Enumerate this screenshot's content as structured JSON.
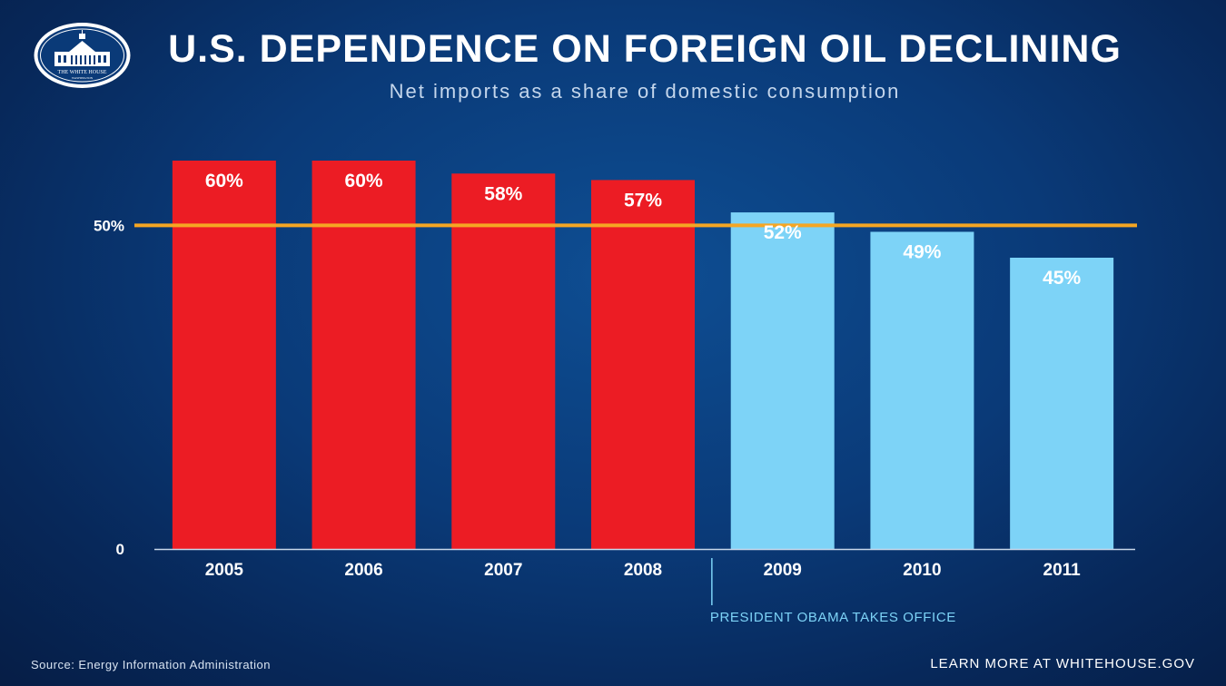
{
  "header": {
    "title": "U.S. DEPENDENCE ON FOREIGN OIL DECLINING",
    "subtitle": "Net imports as a share of domestic consumption"
  },
  "logo": {
    "line1": "THE WHITE HOUSE",
    "line2": "WASHINGTON"
  },
  "chart_data": {
    "type": "bar",
    "title": "U.S. DEPENDENCE ON FOREIGN OIL DECLINING",
    "subtitle": "Net imports as a share of domestic consumption",
    "categories": [
      "2005",
      "2006",
      "2007",
      "2008",
      "2009",
      "2010",
      "2011"
    ],
    "values": [
      60,
      60,
      58,
      57,
      52,
      49,
      45
    ],
    "value_labels": [
      "60%",
      "60%",
      "58%",
      "57%",
      "52%",
      "49%",
      "45%"
    ],
    "bar_colors": [
      "#ec1c24",
      "#ec1c24",
      "#ec1c24",
      "#ec1c24",
      "#7dd3f7",
      "#7dd3f7",
      "#7dd3f7"
    ],
    "ylim": [
      0,
      60
    ],
    "y_ticks": [
      {
        "value": 0,
        "label": "0"
      },
      {
        "value": 50,
        "label": "50%"
      }
    ],
    "reference_line": {
      "value": 50,
      "color": "#f5a623"
    },
    "xlabel": "",
    "ylabel": "",
    "grid": false,
    "annotation": {
      "text": "PRESIDENT OBAMA TAKES OFFICE",
      "category": "2009",
      "color": "#7dd3f7"
    }
  },
  "footer": {
    "source": "Source: Energy Information Administration",
    "link": "LEARN MORE AT WHITEHOUSE.GOV"
  },
  "colors": {
    "text": "#ffffff",
    "axis": "#c9d8ea"
  }
}
